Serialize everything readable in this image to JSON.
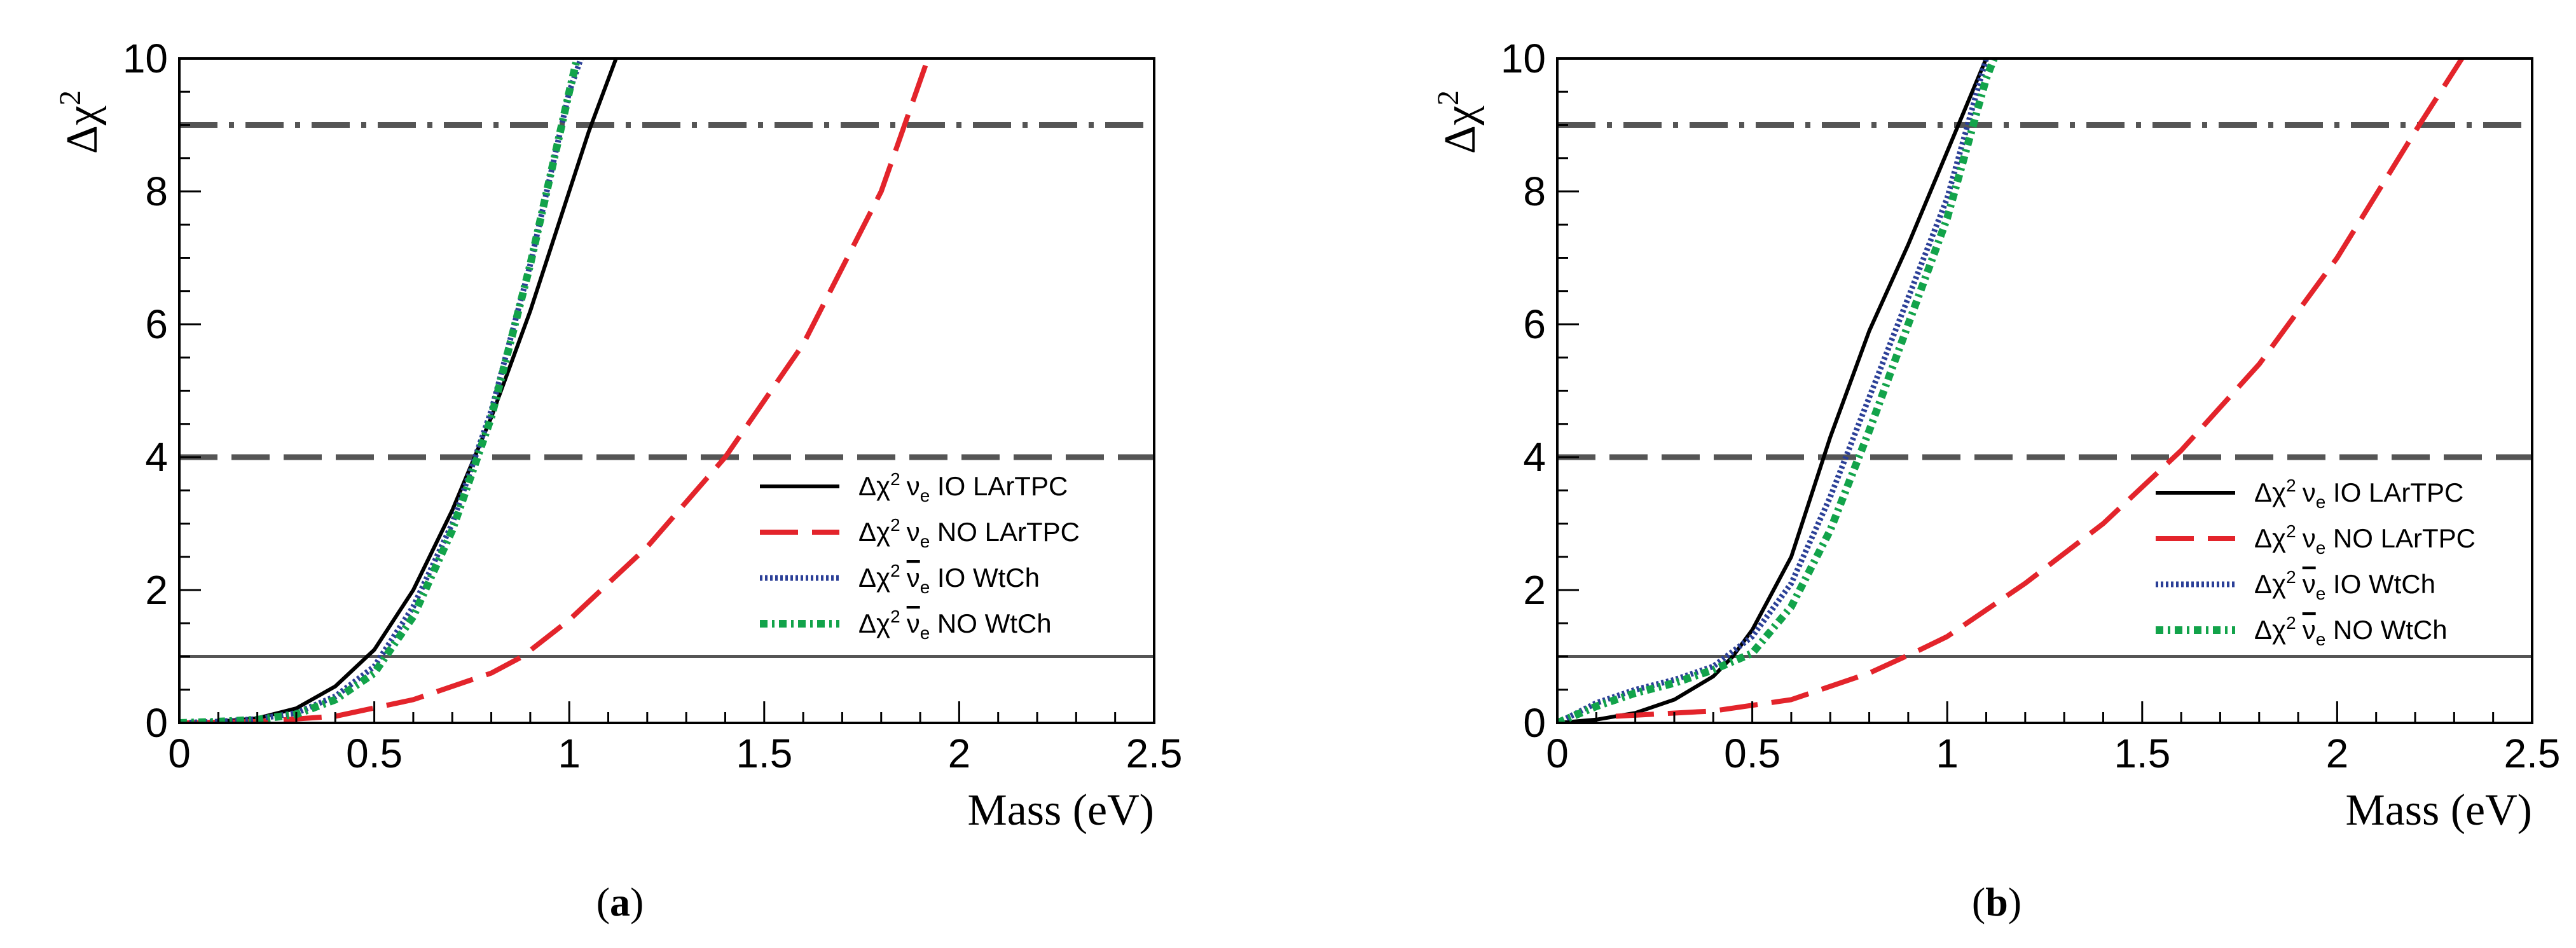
{
  "colors": {
    "ve_io_lartpc": "#000000",
    "ve_no_lartpc": "#e3242b",
    "vebar_io_wtch": "#2b3f97",
    "vebar_no_wtch": "#12a34a",
    "ref_lines": "#555555"
  },
  "chart_data": [
    {
      "type": "line",
      "panel": "a",
      "caption_letter": "a",
      "xlabel": "Mass (eV)",
      "ylabel_base": "Δχ",
      "ylabel_sup": "2",
      "xlim": [
        0,
        2.5
      ],
      "ylim": [
        0,
        10
      ],
      "x_ticks": [
        "0",
        "0.5",
        "1",
        "1.5",
        "2",
        "2.5"
      ],
      "y_ticks": [
        "0",
        "2",
        "4",
        "6",
        "8",
        "10"
      ],
      "legend_placement": "center-right",
      "reference_lines": [
        {
          "y": 1,
          "style": "solid"
        },
        {
          "y": 4,
          "style": "dashed"
        },
        {
          "y": 9,
          "style": "dash-dot"
        }
      ],
      "series": [
        {
          "name": "Δχ² νe IO LArTPC",
          "legend": {
            "pre": "Δχ",
            "sup": "2",
            "nu": "ν",
            "bar": false,
            "sub": "e",
            "post": " IO LArTPC"
          },
          "style": "solid",
          "color_key": "ve_io_lartpc",
          "x": [
            0,
            0.1,
            0.2,
            0.3,
            0.4,
            0.5,
            0.6,
            0.7,
            0.8,
            0.9,
            1.0,
            1.05,
            1.12
          ],
          "y": [
            0,
            0.02,
            0.07,
            0.22,
            0.55,
            1.1,
            2.0,
            3.2,
            4.6,
            6.2,
            8.0,
            8.9,
            10.0
          ]
        },
        {
          "name": "Δχ² νe NO LArTPC",
          "legend": {
            "pre": "Δχ",
            "sup": "2",
            "nu": "ν",
            "bar": false,
            "sub": "e",
            "post": " NO LArTPC"
          },
          "style": "dashed",
          "color_key": "ve_no_lartpc",
          "x": [
            0,
            0.2,
            0.4,
            0.6,
            0.8,
            0.88,
            1.0,
            1.2,
            1.4,
            1.6,
            1.8,
            1.92
          ],
          "y": [
            0,
            0.02,
            0.1,
            0.35,
            0.75,
            1.0,
            1.55,
            2.65,
            4.0,
            5.7,
            8.0,
            10.0
          ]
        },
        {
          "name": "Δχ² ν̄e IO WtCh",
          "legend": {
            "pre": "Δχ",
            "sup": "2",
            "nu": "ν",
            "bar": true,
            "sub": "e",
            "post": " IO WtCh"
          },
          "style": "dotted",
          "color_key": "vebar_io_wtch",
          "x": [
            0,
            0.1,
            0.2,
            0.3,
            0.4,
            0.5,
            0.6,
            0.7,
            0.8,
            0.9,
            1.0,
            1.03
          ],
          "y": [
            0,
            0.02,
            0.06,
            0.15,
            0.4,
            0.85,
            1.75,
            3.0,
            4.7,
            6.9,
            9.5,
            10.0
          ]
        },
        {
          "name": "Δχ² ν̄e NO WtCh",
          "legend": {
            "pre": "Δχ",
            "sup": "2",
            "nu": "ν",
            "bar": true,
            "sub": "e",
            "post": " NO WtCh"
          },
          "style": "dash-dot-dense",
          "color_key": "vebar_no_wtch",
          "x": [
            0,
            0.1,
            0.2,
            0.3,
            0.4,
            0.5,
            0.6,
            0.7,
            0.8,
            0.9,
            1.0,
            1.02
          ],
          "y": [
            0,
            0.02,
            0.05,
            0.13,
            0.35,
            0.75,
            1.6,
            2.9,
            4.6,
            6.9,
            9.5,
            10.0
          ]
        }
      ]
    },
    {
      "type": "line",
      "panel": "b",
      "caption_letter": "b",
      "xlabel": "Mass (eV)",
      "ylabel_base": "Δχ",
      "ylabel_sup": "2",
      "xlim": [
        0,
        2.5
      ],
      "ylim": [
        0,
        10
      ],
      "x_ticks": [
        "0",
        "0.5",
        "1",
        "1.5",
        "2",
        "2.5"
      ],
      "y_ticks": [
        "0",
        "2",
        "4",
        "6",
        "8",
        "10"
      ],
      "legend_placement": "center-right",
      "reference_lines": [
        {
          "y": 1,
          "style": "solid"
        },
        {
          "y": 4,
          "style": "dashed"
        },
        {
          "y": 9,
          "style": "dash-dot"
        }
      ],
      "series": [
        {
          "name": "Δχ² νe IO LArTPC",
          "legend": {
            "pre": "Δχ",
            "sup": "2",
            "nu": "ν",
            "bar": false,
            "sub": "e",
            "post": " IO LArTPC"
          },
          "style": "solid",
          "color_key": "ve_io_lartpc",
          "x": [
            0,
            0.1,
            0.2,
            0.3,
            0.4,
            0.45,
            0.5,
            0.6,
            0.7,
            0.8,
            0.9,
            1.0,
            1.1
          ],
          "y": [
            0,
            0.05,
            0.15,
            0.35,
            0.7,
            1.0,
            1.4,
            2.5,
            4.3,
            5.9,
            7.2,
            8.6,
            10.0
          ]
        },
        {
          "name": "Δχ² νe NO LArTPC",
          "legend": {
            "pre": "Δχ",
            "sup": "2",
            "nu": "ν",
            "bar": false,
            "sub": "e",
            "post": " NO LArTPC"
          },
          "style": "dashed",
          "color_key": "ve_no_lartpc",
          "x": [
            0.15,
            0.4,
            0.6,
            0.8,
            0.93,
            1.0,
            1.2,
            1.4,
            1.6,
            1.8,
            2.0,
            2.2,
            2.32
          ],
          "y": [
            0.1,
            0.18,
            0.35,
            0.75,
            1.1,
            1.3,
            2.1,
            3.0,
            4.1,
            5.4,
            7.0,
            8.9,
            10.0
          ]
        },
        {
          "name": "Δχ² ν̄e IO WtCh",
          "legend": {
            "pre": "Δχ",
            "sup": "2",
            "nu": "ν",
            "bar": true,
            "sub": "e",
            "post": " IO WtCh"
          },
          "style": "dotted",
          "color_key": "vebar_io_wtch",
          "x": [
            0,
            0.1,
            0.2,
            0.3,
            0.4,
            0.5,
            0.6,
            0.7,
            0.8,
            0.9,
            1.0,
            1.1
          ],
          "y": [
            0,
            0.3,
            0.5,
            0.65,
            0.85,
            1.3,
            2.1,
            3.4,
            4.9,
            6.4,
            7.9,
            10.0
          ]
        },
        {
          "name": "Δχ² ν̄e NO WtCh",
          "legend": {
            "pre": "Δχ",
            "sup": "2",
            "nu": "ν",
            "bar": true,
            "sub": "e",
            "post": " NO WtCh"
          },
          "style": "dash-dot-dense",
          "color_key": "vebar_no_wtch",
          "x": [
            0,
            0.1,
            0.2,
            0.3,
            0.4,
            0.5,
            0.6,
            0.7,
            0.8,
            0.9,
            1.0,
            1.1,
            1.12
          ],
          "y": [
            0,
            0.25,
            0.45,
            0.6,
            0.8,
            1.05,
            1.75,
            2.9,
            4.4,
            6.0,
            7.6,
            9.7,
            10.0
          ]
        }
      ]
    }
  ]
}
